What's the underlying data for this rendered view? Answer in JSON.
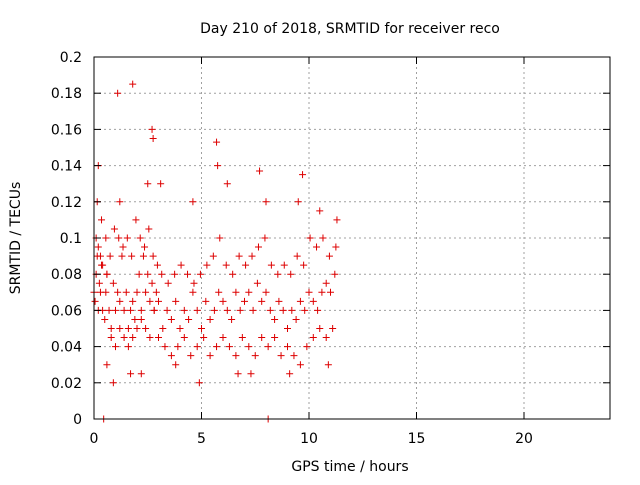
{
  "chart_data": {
    "type": "scatter",
    "title": "Day 210 of 2018, SRMTID for receiver reco",
    "xlabel": "GPS time / hours",
    "ylabel": "SRMTID / TECUs",
    "xlim": [
      0,
      24
    ],
    "ylim": [
      0,
      0.2
    ],
    "xticks": [
      0,
      5,
      10,
      15,
      20
    ],
    "xtick_labels": [
      "0",
      "5",
      "10",
      "15",
      "20"
    ],
    "yticks": [
      0,
      0.02,
      0.04,
      0.06,
      0.08,
      0.1,
      0.12,
      0.14,
      0.16,
      0.18,
      0.2
    ],
    "ytick_labels": [
      "0",
      "0.02",
      "0.04",
      "0.06",
      "0.08",
      "0.1",
      "0.12",
      "0.14",
      "0.16",
      "0.18",
      "0.2"
    ],
    "grid": true,
    "marker": "+",
    "color": "#dd0000",
    "series": [
      {
        "x": [
          0.0,
          0.05,
          0.1,
          0.15,
          0.2,
          0.25,
          0.3,
          0.35,
          0.4,
          0.5,
          0.55,
          0.6,
          0.7,
          0.8,
          0.9,
          1.0,
          1.1,
          1.2,
          1.3,
          1.4,
          1.5,
          1.6,
          1.7,
          1.8,
          1.9,
          2.0,
          2.1,
          2.2,
          2.3,
          2.4,
          2.5,
          2.6,
          2.7,
          2.8,
          2.9,
          3.0,
          3.2,
          3.4,
          3.6,
          3.8,
          4.0,
          4.2,
          4.4,
          4.6,
          4.8,
          5.0,
          5.2,
          5.4,
          5.6,
          5.8,
          6.0,
          6.2,
          6.4,
          6.6,
          6.8,
          7.0,
          7.2,
          7.4,
          7.6,
          7.8,
          8.0,
          8.2,
          8.4,
          8.6,
          8.8,
          9.0,
          9.2,
          9.4,
          9.6,
          9.8,
          10.0,
          10.2,
          10.4,
          10.6,
          10.8,
          11.0,
          11.2,
          0.1,
          0.2,
          0.3,
          0.4,
          0.6,
          0.8,
          1.0,
          1.2,
          1.4,
          1.6,
          1.8,
          2.0,
          2.2,
          2.4,
          2.6,
          2.8,
          3.0,
          3.3,
          3.6,
          3.9,
          4.2,
          4.5,
          4.8,
          5.1,
          5.4,
          5.7,
          6.0,
          6.3,
          6.6,
          6.9,
          7.2,
          7.5,
          7.8,
          8.1,
          8.4,
          8.7,
          9.0,
          9.3,
          9.6,
          9.9,
          10.2,
          10.5,
          10.8,
          11.1,
          0.15,
          0.35,
          0.55,
          0.75,
          0.95,
          1.15,
          1.35,
          1.55,
          1.75,
          1.95,
          2.15,
          2.35,
          2.55,
          2.75,
          2.95,
          3.15,
          3.45,
          3.75,
          4.05,
          4.35,
          4.65,
          4.95,
          5.25,
          5.55,
          5.85,
          6.15,
          6.45,
          6.75,
          7.05,
          7.35,
          7.65,
          7.95,
          8.25,
          8.55,
          8.85,
          9.15,
          9.45,
          9.75,
          10.05,
          10.35,
          10.65,
          10.95,
          11.25,
          1.1,
          1.8,
          2.7,
          2.75,
          5.7,
          5.75,
          7.7,
          9.7,
          0.45,
          8.1,
          0.2,
          1.2,
          2.5,
          3.1,
          4.6,
          6.2,
          8.0,
          9.5,
          10.5,
          11.3,
          0.6,
          1.7,
          2.2,
          4.9,
          7.3,
          9.1,
          10.9,
          0.9,
          3.8,
          6.7
        ],
        "y": [
          0.07,
          0.065,
          0.08,
          0.09,
          0.06,
          0.075,
          0.07,
          0.085,
          0.06,
          0.055,
          0.07,
          0.08,
          0.06,
          0.05,
          0.075,
          0.06,
          0.07,
          0.065,
          0.09,
          0.06,
          0.07,
          0.05,
          0.06,
          0.065,
          0.055,
          0.07,
          0.08,
          0.06,
          0.09,
          0.07,
          0.08,
          0.065,
          0.075,
          0.06,
          0.07,
          0.065,
          0.05,
          0.06,
          0.055,
          0.065,
          0.05,
          0.06,
          0.055,
          0.07,
          0.06,
          0.05,
          0.065,
          0.055,
          0.06,
          0.07,
          0.065,
          0.06,
          0.055,
          0.07,
          0.06,
          0.065,
          0.07,
          0.06,
          0.075,
          0.065,
          0.07,
          0.06,
          0.055,
          0.065,
          0.06,
          0.05,
          0.06,
          0.055,
          0.065,
          0.06,
          0.07,
          0.065,
          0.06,
          0.07,
          0.075,
          0.07,
          0.08,
          0.1,
          0.095,
          0.09,
          0.085,
          0.08,
          0.045,
          0.04,
          0.05,
          0.045,
          0.04,
          0.045,
          0.05,
          0.055,
          0.05,
          0.045,
          0.06,
          0.045,
          0.04,
          0.035,
          0.04,
          0.045,
          0.035,
          0.04,
          0.045,
          0.035,
          0.04,
          0.045,
          0.04,
          0.035,
          0.045,
          0.04,
          0.035,
          0.045,
          0.04,
          0.045,
          0.035,
          0.04,
          0.035,
          0.03,
          0.04,
          0.045,
          0.05,
          0.045,
          0.05,
          0.12,
          0.11,
          0.1,
          0.09,
          0.105,
          0.1,
          0.095,
          0.1,
          0.09,
          0.11,
          0.1,
          0.095,
          0.105,
          0.09,
          0.085,
          0.08,
          0.075,
          0.08,
          0.085,
          0.08,
          0.075,
          0.08,
          0.085,
          0.09,
          0.1,
          0.085,
          0.08,
          0.09,
          0.085,
          0.09,
          0.095,
          0.1,
          0.085,
          0.08,
          0.085,
          0.08,
          0.09,
          0.085,
          0.1,
          0.095,
          0.1,
          0.09,
          0.095,
          0.18,
          0.185,
          0.16,
          0.155,
          0.153,
          0.14,
          0.137,
          0.135,
          0.0,
          0.0,
          0.14,
          0.12,
          0.13,
          0.13,
          0.12,
          0.13,
          0.12,
          0.12,
          0.115,
          0.11,
          0.03,
          0.025,
          0.025,
          0.02,
          0.025,
          0.025,
          0.03,
          0.02,
          0.03,
          0.025
        ]
      }
    ]
  }
}
